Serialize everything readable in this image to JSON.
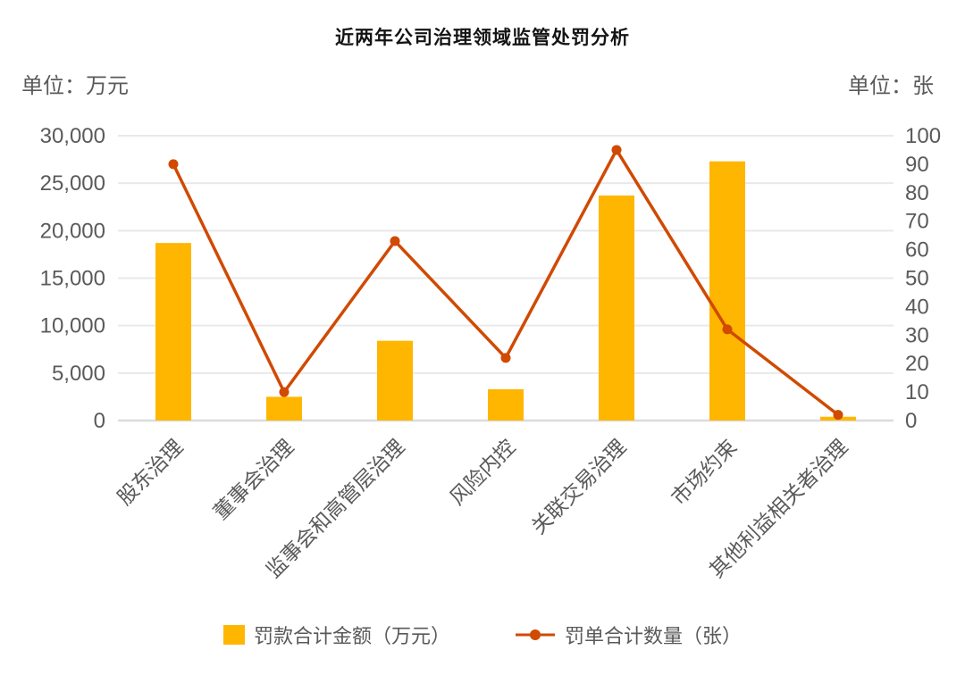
{
  "title": "近两年公司治理领域监管处罚分析",
  "left_axis": {
    "unit_label": "单位：万元",
    "ticks": [
      {
        "label": "30,000",
        "value": 30000
      },
      {
        "label": "25,000",
        "value": 25000
      },
      {
        "label": "20,000",
        "value": 20000
      },
      {
        "label": "15,000",
        "value": 15000
      },
      {
        "label": "10,000",
        "value": 10000
      },
      {
        "label": "5,000",
        "value": 5000
      },
      {
        "label": "0",
        "value": 0
      }
    ]
  },
  "right_axis": {
    "unit_label": "单位：张",
    "ticks": [
      {
        "label": "100",
        "value": 100
      },
      {
        "label": "90",
        "value": 90
      },
      {
        "label": "80",
        "value": 80
      },
      {
        "label": "70",
        "value": 70
      },
      {
        "label": "60",
        "value": 60
      },
      {
        "label": "50",
        "value": 50
      },
      {
        "label": "40",
        "value": 40
      },
      {
        "label": "30",
        "value": 30
      },
      {
        "label": "20",
        "value": 20
      },
      {
        "label": "10",
        "value": 10
      },
      {
        "label": "0",
        "value": 0
      }
    ]
  },
  "legend": [
    {
      "label": "罚款合计金额（万元）",
      "marker": "square",
      "color": "#FFB600"
    },
    {
      "label": "罚单合计数量（张）",
      "marker": "line-dot",
      "color": "#D04A02"
    }
  ],
  "colors": {
    "bar": "#FFB600",
    "line": "#D04A02",
    "grid": "#E9E9E9",
    "zero_line": "#DCDCDC",
    "axis_text": "#5A5A5A",
    "title_text": "#141414",
    "background": "#FFFFFF"
  },
  "chart_data": {
    "type": "combo",
    "categories": [
      "股东治理",
      "董事会治理",
      "监事会和高管层治理",
      "风险内控",
      "关联交易治理",
      "市场约束",
      "其他利益相关者治理"
    ],
    "series": [
      {
        "name": "罚款合计金额（万元）",
        "type": "bar",
        "y_axis": "left",
        "color": "#FFB600",
        "values": [
          18700,
          2500,
          8400,
          3300,
          23700,
          27300,
          400
        ]
      },
      {
        "name": "罚单合计数量（张）",
        "type": "line",
        "y_axis": "right",
        "color": "#D04A02",
        "values": [
          90,
          10,
          63,
          22,
          95,
          32,
          2
        ]
      }
    ],
    "title": "近两年公司治理领域监管处罚分析",
    "xlabel": "",
    "ylabel_left": "单位：万元",
    "ylabel_right": "单位：张",
    "left_ylim": [
      0,
      30000
    ],
    "right_ylim": [
      0,
      100
    ],
    "grid": true,
    "legend_position": "bottom"
  }
}
